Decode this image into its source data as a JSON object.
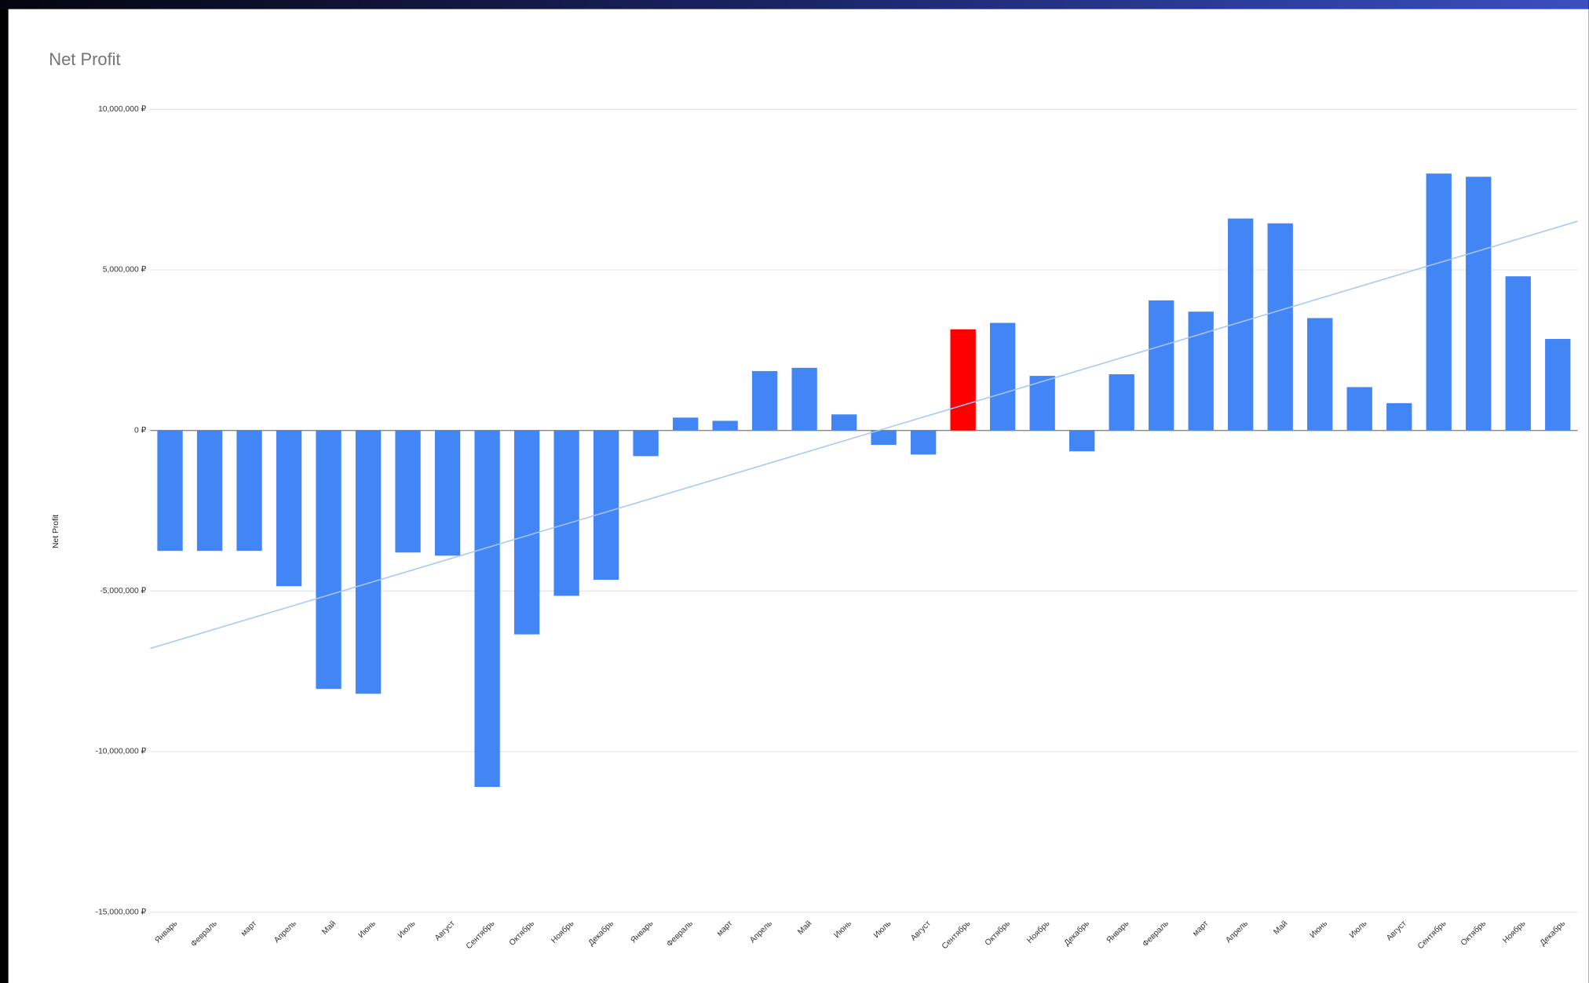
{
  "chart_data": {
    "type": "bar",
    "title": "Net Profit",
    "y_label": "Net Profit",
    "categories": [
      "Январь",
      "Февраль",
      "март",
      "Апрель",
      "Май",
      "Июнь",
      "Июль",
      "Август",
      "Сентябрь",
      "Октябрь",
      "Ноябрь",
      "Декабрь",
      "Январь",
      "Февраль",
      "март",
      "Апрель",
      "Май",
      "Июнь",
      "Июль",
      "Август",
      "Сентябрь",
      "Октябрь",
      "Ноябрь",
      "Декабрь",
      "Январь",
      "Февраль",
      "март",
      "Апрель",
      "Май",
      "Июнь",
      "Июль",
      "Август",
      "Сентябрь",
      "Октябрь",
      "Ноябрь",
      "Декабрь"
    ],
    "values": [
      -3750000,
      -3750000,
      -3750000,
      -4850000,
      -8050000,
      -8200000,
      -3800000,
      -3900000,
      -11100000,
      -6350000,
      -5150000,
      -4650000,
      -800000,
      400000,
      300000,
      1850000,
      1950000,
      500000,
      -450000,
      -750000,
      3150000,
      3350000,
      1700000,
      -650000,
      1750000,
      4050000,
      3700000,
      6600000,
      6450000,
      3500000,
      1350000,
      850000,
      8000000,
      7900000,
      4800000,
      2850000
    ],
    "colors": [
      "#4285f4",
      "#4285f4",
      "#4285f4",
      "#4285f4",
      "#4285f4",
      "#4285f4",
      "#4285f4",
      "#4285f4",
      "#4285f4",
      "#4285f4",
      "#4285f4",
      "#4285f4",
      "#4285f4",
      "#4285f4",
      "#4285f4",
      "#4285f4",
      "#4285f4",
      "#4285f4",
      "#4285f4",
      "#4285f4",
      "#ff0000",
      "#4285f4",
      "#4285f4",
      "#4285f4",
      "#4285f4",
      "#4285f4",
      "#4285f4",
      "#4285f4",
      "#4285f4",
      "#4285f4",
      "#4285f4",
      "#4285f4",
      "#4285f4",
      "#4285f4",
      "#4285f4",
      "#4285f4"
    ],
    "ylim": [
      -15000000,
      10000000
    ],
    "yticks": [
      {
        "value": -15000000,
        "label": "-15,000,000 ₽"
      },
      {
        "value": -10000000,
        "label": "-10,000,000 ₽"
      },
      {
        "value": -5000000,
        "label": "-5,000,000 ₽"
      },
      {
        "value": 0,
        "label": "0 ₽"
      },
      {
        "value": 5000000,
        "label": "5,000,000 ₽"
      },
      {
        "value": 10000000,
        "label": "10,000,000 ₽"
      }
    ],
    "grid": true,
    "trendline": true,
    "trendline_color": "#a8c6f8"
  }
}
